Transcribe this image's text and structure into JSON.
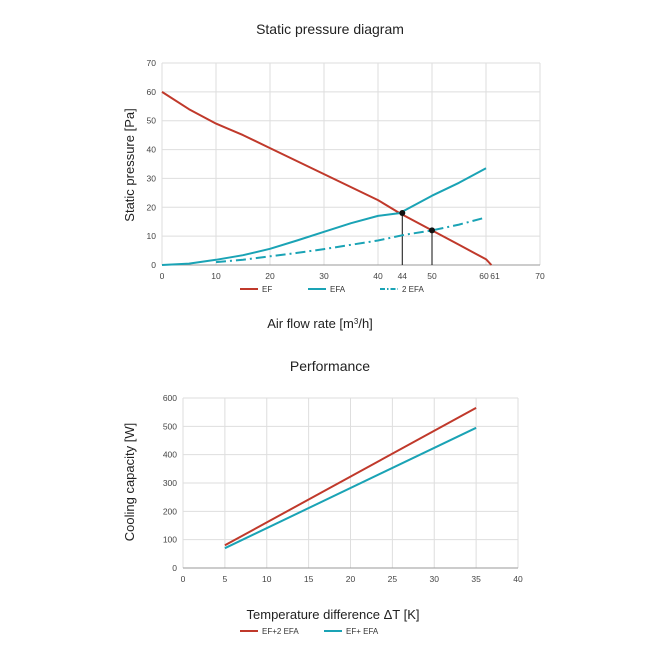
{
  "chart_data": [
    {
      "type": "line",
      "title": "Static pressure diagram",
      "xlabel_main": "Air flow rate [m",
      "xlabel_sup": "3",
      "xlabel_end": "/h]",
      "ylabel": "Static pressure  [Pa]",
      "xlim": [
        0,
        70
      ],
      "ylim": [
        0,
        70
      ],
      "x_ticks": [
        "0",
        "10",
        "20",
        "30",
        "40",
        "50",
        "60",
        "70"
      ],
      "x_tick_values": [
        0,
        10,
        20,
        30,
        40,
        50,
        60,
        70
      ],
      "extra_x_ticks": [
        {
          "label": "44",
          "value": 44.5
        },
        {
          "label": "61",
          "value": 61.3
        }
      ],
      "y_ticks": [
        "0",
        "10",
        "20",
        "30",
        "40",
        "50",
        "60",
        "70"
      ],
      "y_tick_values": [
        0,
        10,
        20,
        30,
        40,
        50,
        60,
        70
      ],
      "grid": true,
      "legend_position": "bottom",
      "series": [
        {
          "name": "EF",
          "color": "#c0392b",
          "style": "solid",
          "x": [
            0,
            5,
            10,
            15,
            20,
            25,
            30,
            35,
            40,
            44,
            50,
            55,
            58,
            60,
            61
          ],
          "y": [
            60,
            54,
            49,
            45,
            40.5,
            36,
            31.5,
            27,
            22.5,
            18,
            12,
            7,
            4,
            2,
            0
          ]
        },
        {
          "name": "EFA",
          "color": "#1aa3b5",
          "style": "solid",
          "x": [
            0,
            5,
            10,
            15,
            20,
            25,
            30,
            35,
            40,
            44,
            50,
            55,
            60
          ],
          "y": [
            0,
            0.5,
            1.8,
            3.4,
            5.6,
            8.5,
            11.5,
            14.5,
            17,
            18,
            24,
            28.5,
            33.5
          ]
        },
        {
          "name": "2 EFA",
          "color": "#1aa3b5",
          "style": "dashdot",
          "x": [
            10,
            15,
            20,
            25,
            30,
            35,
            40,
            45,
            50,
            55,
            60
          ],
          "y": [
            1,
            1.8,
            3,
            4.2,
            5.5,
            7,
            8.5,
            10.5,
            12,
            14,
            16.5
          ]
        }
      ],
      "operating_points": [
        {
          "x": 44.5,
          "y": 18
        },
        {
          "x": 50,
          "y": 12
        }
      ]
    },
    {
      "type": "line",
      "title": "Performance",
      "xlabel": "Temperature difference ΔT [K]",
      "ylabel": "Cooling capacity  [W]",
      "xlim": [
        0,
        40
      ],
      "ylim": [
        0,
        600
      ],
      "x_ticks": [
        "0",
        "5",
        "10",
        "15",
        "20",
        "25",
        "30",
        "35",
        "40"
      ],
      "x_tick_values": [
        0,
        5,
        10,
        15,
        20,
        25,
        30,
        35,
        40
      ],
      "y_ticks": [
        "0",
        "100",
        "200",
        "300",
        "400",
        "500",
        "600"
      ],
      "y_tick_values": [
        0,
        100,
        200,
        300,
        400,
        500,
        600
      ],
      "grid": true,
      "legend_position": "bottom",
      "series": [
        {
          "name": "EF+2 EFA",
          "color": "#c0392b",
          "style": "solid",
          "x": [
            5,
            35
          ],
          "y": [
            80,
            565
          ]
        },
        {
          "name": "EF+ EFA",
          "color": "#1aa3b5",
          "style": "solid",
          "x": [
            5,
            35
          ],
          "y": [
            70,
            495
          ]
        }
      ]
    }
  ]
}
